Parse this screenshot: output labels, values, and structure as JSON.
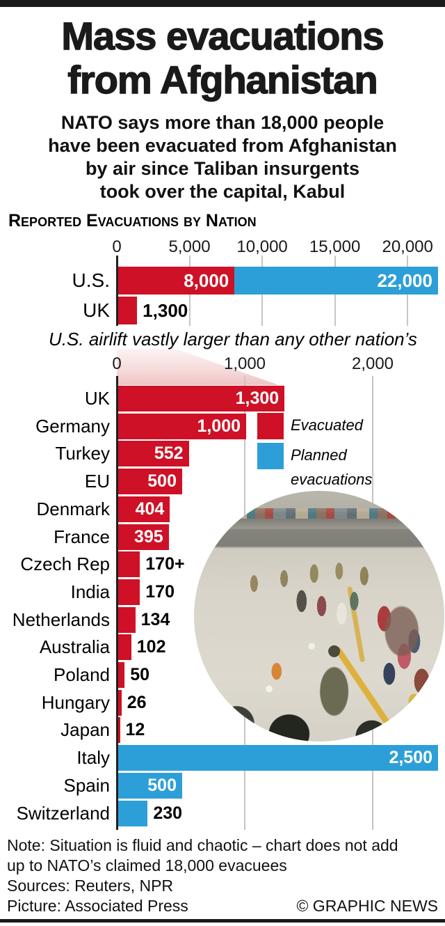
{
  "header": {
    "title_line1": "Mass evacuations",
    "title_line2": "from Afghanistan",
    "subtitle_lines": [
      "NATO says more than 18,000 people",
      "have been evacuated from Afghanistan",
      "by air since Taliban insurgents",
      "took over the capital, Kabul"
    ]
  },
  "section_header": "Reported Evacuations by Nation",
  "colors": {
    "evacuated": "#ce1126",
    "planned": "#2d9fd8",
    "axis": "#231f20",
    "gridline": "#c9c4c2"
  },
  "middle_caption": "U.S. airlift vastly larger than any other nation’s",
  "legend": {
    "items": [
      {
        "kind": "evacuated",
        "label": "Evacuated"
      },
      {
        "kind": "planned",
        "label": "Planned evacuations"
      }
    ]
  },
  "photo": {
    "description": "Soldiers escort evacuees across the tarmac at Kabul airport"
  },
  "footer": {
    "note_line1": "Note: Situation is fluid and chaotic – chart does not add",
    "note_line2": "up to NATO’s claimed 18,000 evacuees",
    "sources": "Sources: Reuters, NPR",
    "picture_credit": "Picture: Associated Press",
    "copyright": "© GRAPHIC NEWS"
  },
  "chart_data": [
    {
      "type": "bar",
      "orientation": "horizontal",
      "title": "Reported Evacuations by Nation",
      "xlim": [
        0,
        22000
      ],
      "xticks": [
        0,
        5000,
        10000,
        15000,
        20000
      ],
      "xtick_labels": [
        "0",
        "5,000",
        "10,000",
        "15,000",
        "20,000"
      ],
      "grid": true,
      "rows": [
        {
          "category": "U.S.",
          "segments": [
            {
              "series": "evacuated",
              "start": 0,
              "end": 8000,
              "label": "8,000",
              "label_inside": true
            },
            {
              "series": "planned",
              "start": 8000,
              "end": 22000,
              "label": "22,000",
              "label_inside": true
            }
          ]
        },
        {
          "category": "UK",
          "segments": [
            {
              "series": "evacuated",
              "start": 0,
              "end": 1300,
              "label": "1,300",
              "label_inside": false
            }
          ]
        }
      ]
    },
    {
      "type": "bar",
      "orientation": "horizontal",
      "subtitle": "U.S. airlift vastly larger than any other nation’s",
      "xlim": [
        0,
        2500
      ],
      "xticks": [
        0,
        1000,
        2000
      ],
      "xtick_labels": [
        "0",
        "1,000",
        "2,000"
      ],
      "grid": true,
      "rows": [
        {
          "category": "UK",
          "series": "evacuated",
          "value": 1300,
          "label": "1,300",
          "label_inside": true
        },
        {
          "category": "Germany",
          "series": "evacuated",
          "value": 1000,
          "label": "1,000",
          "label_inside": true
        },
        {
          "category": "Turkey",
          "series": "evacuated",
          "value": 552,
          "label": "552",
          "label_inside": true
        },
        {
          "category": "EU",
          "series": "evacuated",
          "value": 500,
          "label": "500",
          "label_inside": true
        },
        {
          "category": "Denmark",
          "series": "evacuated",
          "value": 404,
          "label": "404",
          "label_inside": true
        },
        {
          "category": "France",
          "series": "evacuated",
          "value": 395,
          "label": "395",
          "label_inside": true
        },
        {
          "category": "Czech Rep",
          "series": "evacuated",
          "value": 170,
          "label": "170+",
          "label_inside": false
        },
        {
          "category": "India",
          "series": "evacuated",
          "value": 170,
          "label": "170",
          "label_inside": false
        },
        {
          "category": "Netherlands",
          "series": "evacuated",
          "value": 134,
          "label": "134",
          "label_inside": false
        },
        {
          "category": "Australia",
          "series": "evacuated",
          "value": 102,
          "label": "102",
          "label_inside": false
        },
        {
          "category": "Poland",
          "series": "evacuated",
          "value": 50,
          "label": "50",
          "label_inside": false
        },
        {
          "category": "Hungary",
          "series": "evacuated",
          "value": 26,
          "label": "26",
          "label_inside": false
        },
        {
          "category": "Japan",
          "series": "evacuated",
          "value": 12,
          "label": "12",
          "label_inside": false
        },
        {
          "category": "Italy",
          "series": "planned",
          "value": 2500,
          "label": "2,500",
          "label_inside": true
        },
        {
          "category": "Spain",
          "series": "planned",
          "value": 500,
          "label": "500",
          "label_inside": true
        },
        {
          "category": "Switzerland",
          "series": "planned",
          "value": 230,
          "label": "230",
          "label_inside": false
        }
      ]
    }
  ]
}
